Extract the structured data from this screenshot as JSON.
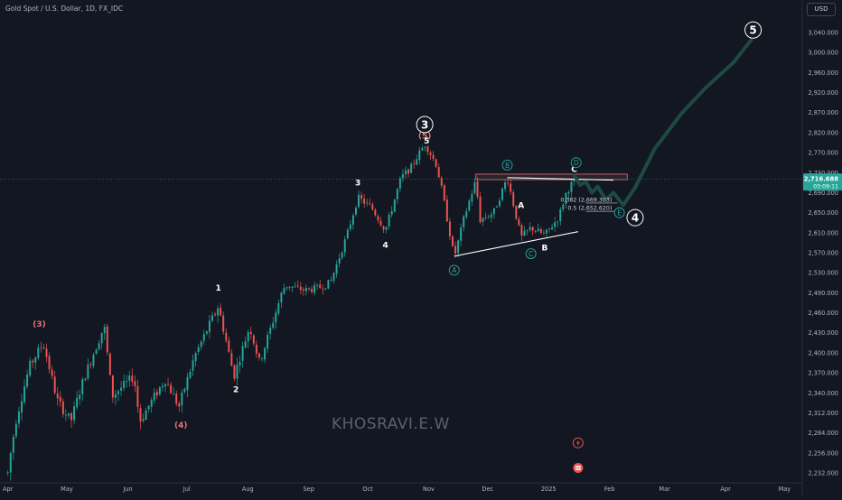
{
  "header": {
    "symbol_title": "Gold Spot / U.S. Dollar, 1D, FX_IDC",
    "currency": "USD"
  },
  "watermark": "KHOSRAVI.E.W",
  "colors": {
    "background": "#131722",
    "up_candle": "#26a69a",
    "down_candle": "#ef5350",
    "projection": "#1e4d45",
    "current_price": "#26a69a",
    "zone": "#e57373",
    "wave_label_teal": "#26a69a"
  },
  "chart_data": {
    "type": "candlestick",
    "x_axis_type": "date",
    "xlim": [
      "2024-03-28",
      "2025-05-10"
    ],
    "ylim": [
      2224,
      3085
    ],
    "y_ticks": [
      2232,
      2256,
      2284,
      2312,
      2340,
      2370,
      2400,
      2430,
      2460,
      2490,
      2530,
      2570,
      2610,
      2650,
      2690,
      2730,
      2770,
      2820,
      2870,
      2920,
      2960,
      3000,
      3040
    ],
    "y_tick_labels": [
      "2,232.000",
      "2,256.000",
      "2,284.000",
      "2,312.000",
      "2,340.000",
      "2,370.000",
      "2,400.000",
      "2,430.000",
      "2,460.000",
      "2,490.000",
      "2,530.000",
      "2,570.000",
      "2,610.000",
      "2,650.000",
      "2,690.000",
      "2,730.000",
      "2,770.000",
      "2,820.000",
      "2,870.000",
      "2,920.000",
      "2,960.000",
      "3,000.000",
      "3,040.000"
    ],
    "x_ticks": [
      {
        "date": "2024-04-01",
        "label": "Apr"
      },
      {
        "date": "2024-05-01",
        "label": "May"
      },
      {
        "date": "2024-06-01",
        "label": "Jun"
      },
      {
        "date": "2024-07-01",
        "label": "Jul"
      },
      {
        "date": "2024-08-01",
        "label": "Aug"
      },
      {
        "date": "2024-09-01",
        "label": "Sep"
      },
      {
        "date": "2024-10-01",
        "label": "Oct"
      },
      {
        "date": "2024-11-01",
        "label": "Nov"
      },
      {
        "date": "2024-12-01",
        "label": "Dec"
      },
      {
        "date": "2025-01-01",
        "label": "2025"
      },
      {
        "date": "2025-02-01",
        "label": "Feb"
      },
      {
        "date": "2025-03-01",
        "label": "Mar"
      },
      {
        "date": "2025-04-01",
        "label": "Apr"
      },
      {
        "date": "2025-05-01",
        "label": "May"
      }
    ],
    "current_price": {
      "value": 2716.688,
      "label": "2,716.688",
      "countdown": "03:09:11"
    },
    "price_anchors": [
      [
        "2024-04-01",
        2232
      ],
      [
        "2024-04-05",
        2300
      ],
      [
        "2024-04-12",
        2380
      ],
      [
        "2024-04-19",
        2415
      ],
      [
        "2024-04-26",
        2330
      ],
      [
        "2024-05-03",
        2300
      ],
      [
        "2024-05-10",
        2365
      ],
      [
        "2024-05-20",
        2440
      ],
      [
        "2024-05-24",
        2335
      ],
      [
        "2024-06-04",
        2365
      ],
      [
        "2024-06-07",
        2300
      ],
      [
        "2024-06-20",
        2360
      ],
      [
        "2024-06-27",
        2320
      ],
      [
        "2024-07-05",
        2395
      ],
      [
        "2024-07-17",
        2470
      ],
      [
        "2024-07-25",
        2365
      ],
      [
        "2024-08-02",
        2440
      ],
      [
        "2024-08-07",
        2385
      ],
      [
        "2024-08-20",
        2505
      ],
      [
        "2024-08-30",
        2495
      ],
      [
        "2024-09-06",
        2500
      ],
      [
        "2024-09-12",
        2510
      ],
      [
        "2024-09-20",
        2600
      ],
      [
        "2024-09-26",
        2680
      ],
      [
        "2024-10-03",
        2660
      ],
      [
        "2024-10-10",
        2615
      ],
      [
        "2024-10-18",
        2720
      ],
      [
        "2024-10-23",
        2740
      ],
      [
        "2024-10-30",
        2790
      ],
      [
        "2024-11-05",
        2745
      ],
      [
        "2024-11-08",
        2690
      ],
      [
        "2024-11-14",
        2560
      ],
      [
        "2024-11-19",
        2640
      ],
      [
        "2024-11-25",
        2715
      ],
      [
        "2024-11-27",
        2635
      ],
      [
        "2024-12-04",
        2650
      ],
      [
        "2024-12-11",
        2720
      ],
      [
        "2024-12-18",
        2600
      ],
      [
        "2024-12-23",
        2620
      ],
      [
        "2024-12-30",
        2605
      ],
      [
        "2025-01-06",
        2640
      ],
      [
        "2025-01-10",
        2690
      ],
      [
        "2025-01-14",
        2716
      ]
    ],
    "candle_count": 206,
    "projection_path": [
      [
        "2025-01-14",
        2725
      ],
      [
        "2025-01-17",
        2705
      ],
      [
        "2025-01-20",
        2712
      ],
      [
        "2025-01-23",
        2690
      ],
      [
        "2025-01-26",
        2702
      ],
      [
        "2025-01-30",
        2676
      ],
      [
        "2025-02-03",
        2690
      ],
      [
        "2025-02-08",
        2665
      ],
      [
        "2025-02-14",
        2700
      ],
      [
        "2025-02-24",
        2780
      ],
      [
        "2025-03-10",
        2870
      ],
      [
        "2025-03-22",
        2930
      ],
      [
        "2025-04-05",
        2980
      ],
      [
        "2025-04-14",
        3025
      ]
    ],
    "trendlines": [
      {
        "from": [
          "2024-11-14",
          2563
        ],
        "to": [
          "2025-01-16",
          2612
        ],
        "color": "#ffffff"
      },
      {
        "from": [
          "2024-12-11",
          2720
        ],
        "to": [
          "2025-02-03",
          2715
        ],
        "color": "#ffffff"
      }
    ],
    "resistance_zone": {
      "from": "2024-11-25",
      "to": "2025-02-10",
      "top": 2727,
      "bottom": 2716
    },
    "fib_levels": [
      {
        "value": 2669.303,
        "label": "0.382 (2,669.303)",
        "from": "2025-01-20",
        "to": "2025-02-05"
      },
      {
        "value": 2652.62,
        "label": "0.5 (2,652.620)",
        "from": "2025-01-20",
        "to": "2025-02-05"
      }
    ],
    "wave_labels": [
      {
        "text": "(3)",
        "date": "2024-04-17",
        "price": 2443,
        "style": "plain",
        "color": "#e57373"
      },
      {
        "text": "(4)",
        "date": "2024-06-28",
        "price": 2295,
        "style": "plain",
        "color": "#e57373"
      },
      {
        "text": "(5)",
        "date": "2024-10-30",
        "price": 2812,
        "style": "plain",
        "color": "#e57373"
      },
      {
        "text": "1",
        "date": "2024-07-17",
        "price": 2500,
        "style": "plain",
        "color": "#ffffff"
      },
      {
        "text": "2",
        "date": "2024-07-26",
        "price": 2345,
        "style": "plain",
        "color": "#ffffff"
      },
      {
        "text": "3",
        "date": "2024-09-26",
        "price": 2710,
        "style": "plain",
        "color": "#ffffff"
      },
      {
        "text": "4",
        "date": "2024-10-10",
        "price": 2585,
        "style": "plain",
        "color": "#ffffff"
      },
      {
        "text": "5",
        "date": "2024-10-31",
        "price": 2800,
        "style": "plain",
        "color": "#ffffff"
      },
      {
        "text": "A",
        "date": "2024-12-18",
        "price": 2665,
        "style": "plain",
        "color": "#ffffff"
      },
      {
        "text": "B",
        "date": "2024-12-30",
        "price": 2580,
        "style": "plain",
        "color": "#ffffff"
      },
      {
        "text": "C",
        "date": "2025-01-14",
        "price": 2737,
        "style": "plain",
        "color": "#ffffff"
      },
      {
        "text": "3",
        "date": "2024-10-30",
        "price": 2840,
        "style": "circle-major",
        "color": "#ffffff"
      },
      {
        "text": "4",
        "date": "2025-02-14",
        "price": 2640,
        "style": "circle-major",
        "color": "#ffffff"
      },
      {
        "text": "5",
        "date": "2025-04-15",
        "price": 3045,
        "style": "circle-major",
        "color": "#ffffff"
      },
      {
        "text": "A",
        "date": "2024-11-14",
        "price": 2535,
        "style": "circle",
        "color": "#26a69a"
      },
      {
        "text": "B",
        "date": "2024-12-11",
        "price": 2745,
        "style": "circle",
        "color": "#26a69a"
      },
      {
        "text": "C",
        "date": "2024-12-23",
        "price": 2568,
        "style": "circle",
        "color": "#26a69a"
      },
      {
        "text": "D",
        "date": "2025-01-15",
        "price": 2750,
        "style": "circle",
        "color": "#26a69a"
      },
      {
        "text": "E",
        "date": "2025-02-06",
        "price": 2650,
        "style": "circle",
        "color": "#26a69a"
      }
    ],
    "events": [
      {
        "type": "flash-icon",
        "date": "2025-01-16",
        "price": 2270,
        "color": "#ef5350"
      },
      {
        "type": "flag-icon",
        "date": "2025-01-16",
        "price": 2238,
        "color": "#ef5350"
      }
    ]
  }
}
